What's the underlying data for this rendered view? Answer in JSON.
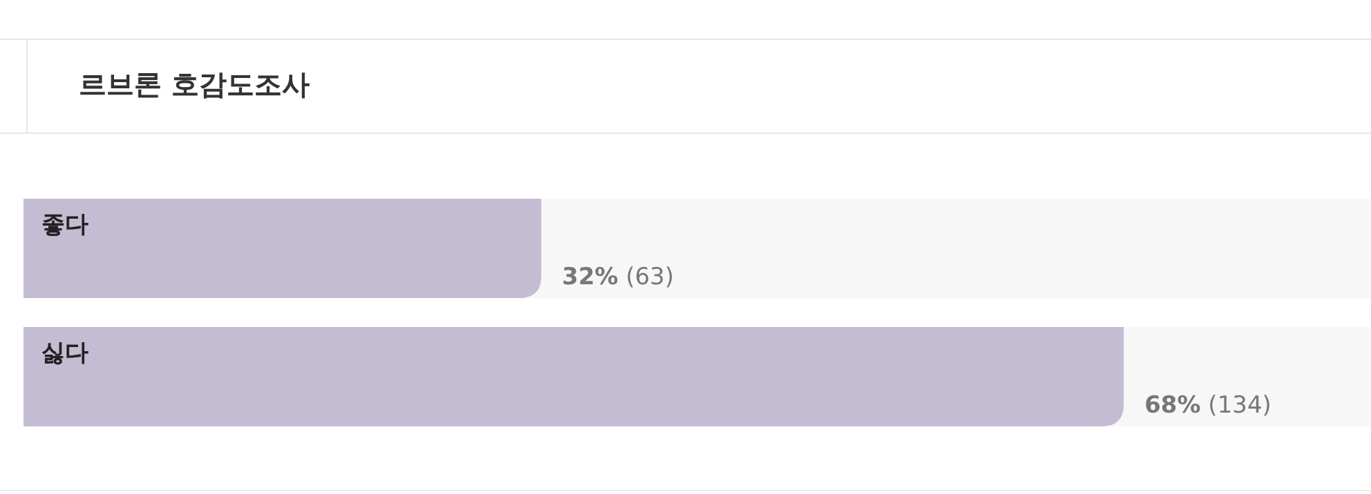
{
  "chart_data": {
    "type": "bar",
    "orientation": "horizontal",
    "title": "르브론 호감도조사",
    "categories": [
      "좋다",
      "싫다"
    ],
    "values": [
      32,
      68
    ],
    "value_labels": [
      "32% (63)",
      "68% (134)"
    ],
    "color": "#c4bcd3"
  }
}
